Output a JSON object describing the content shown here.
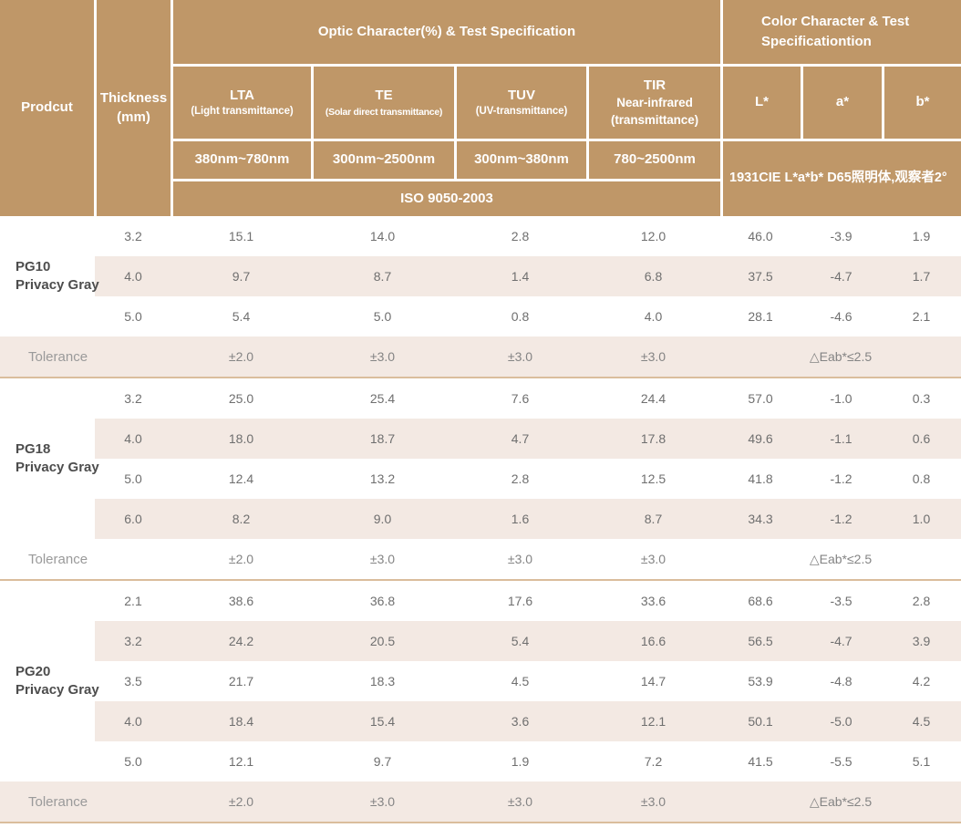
{
  "header": {
    "product_label": "Prodcut",
    "thickness_line1": "Thickness",
    "thickness_line2": "(mm)",
    "optic_group": "Optic Character(%) & Test Specification",
    "color_group_line1": "Color Character & Test",
    "color_group_line2": "Specificationtion",
    "optic_cols": [
      {
        "abbr": "LTA",
        "caption": [
          "(Light transmittance)"
        ],
        "range": "380nm~780nm"
      },
      {
        "abbr": "TE",
        "caption": [
          "(Solar direct transmittance)"
        ],
        "range": "300nm~2500nm"
      },
      {
        "abbr": "TUV",
        "caption": [
          "(UV-transmittance)"
        ],
        "range": "300nm~380nm"
      },
      {
        "abbr": "TIR",
        "caption": [
          "Near-infrared",
          "(transmittance)"
        ],
        "range": "780~2500nm"
      }
    ],
    "color_cols": [
      "L*",
      "a*",
      "b*"
    ],
    "iso_standard": "ISO 9050-2003",
    "cie_standard": "1931CIE L*a*b*  D65照明体,观察者2°"
  },
  "sections": [
    {
      "id": "pg10",
      "product_line1": "PG10",
      "product_line2": "Privacy Gray",
      "rows": [
        {
          "thickness": "3.2",
          "values": [
            "15.1",
            "14.0",
            "2.8",
            "12.0",
            "46.0",
            "-3.9",
            "1.9"
          ]
        },
        {
          "thickness": "4.0",
          "values": [
            "9.7",
            "8.7",
            "1.4",
            "6.8",
            "37.5",
            "-4.7",
            "1.7"
          ]
        },
        {
          "thickness": "5.0",
          "values": [
            "5.4",
            "5.0",
            "0.8",
            "4.0",
            "28.1",
            "-4.6",
            "2.1"
          ]
        }
      ],
      "tolerance": {
        "label": "Tolerance",
        "values": [
          "±2.0",
          "±3.0",
          "±3.0",
          "±3.0"
        ],
        "color_delta": "△Eab*≤2.5"
      }
    },
    {
      "id": "pg18",
      "product_line1": "PG18",
      "product_line2": "Privacy Gray",
      "rows": [
        {
          "thickness": "3.2",
          "values": [
            "25.0",
            "25.4",
            "7.6",
            "24.4",
            "57.0",
            "-1.0",
            "0.3"
          ]
        },
        {
          "thickness": "4.0",
          "values": [
            "18.0",
            "18.7",
            "4.7",
            "17.8",
            "49.6",
            "-1.1",
            "0.6"
          ]
        },
        {
          "thickness": "5.0",
          "values": [
            "12.4",
            "13.2",
            "2.8",
            "12.5",
            "41.8",
            "-1.2",
            "0.8"
          ]
        },
        {
          "thickness": "6.0",
          "values": [
            "8.2",
            "9.0",
            "1.6",
            "8.7",
            "34.3",
            "-1.2",
            "1.0"
          ]
        }
      ],
      "tolerance": {
        "label": "Tolerance",
        "values": [
          "±2.0",
          "±3.0",
          "±3.0",
          "±3.0"
        ],
        "color_delta": "△Eab*≤2.5"
      }
    },
    {
      "id": "pg20",
      "product_line1": "PG20",
      "product_line2": "Privacy Gray",
      "rows": [
        {
          "thickness": "2.1",
          "values": [
            "38.6",
            "36.8",
            "17.6",
            "33.6",
            "68.6",
            "-3.5",
            "2.8"
          ]
        },
        {
          "thickness": "3.2",
          "values": [
            "24.2",
            "20.5",
            "5.4",
            "16.6",
            "56.5",
            "-4.7",
            "3.9"
          ]
        },
        {
          "thickness": "3.5",
          "values": [
            "21.7",
            "18.3",
            "4.5",
            "14.7",
            "53.9",
            "-4.8",
            "4.2"
          ]
        },
        {
          "thickness": "4.0",
          "values": [
            "18.4",
            "15.4",
            "3.6",
            "12.1",
            "50.1",
            "-5.0",
            "4.5"
          ]
        },
        {
          "thickness": "5.0",
          "values": [
            "12.1",
            "9.7",
            "1.9",
            "7.2",
            "41.5",
            "-5.5",
            "5.1"
          ]
        }
      ],
      "tolerance": {
        "label": "Tolerance",
        "values": [
          "±2.0",
          "±3.0",
          "±3.0",
          "±3.0"
        ],
        "color_delta": "△Eab*≤2.5"
      }
    }
  ],
  "colors": {
    "header_bg": "#bf9768",
    "stripe_bg": "#f3e9e3",
    "separator": "#dabd9c",
    "header_text": "#ffffff",
    "body_text": "#6f6f6f",
    "product_text": "#4d4d4d",
    "tolerance_text": "#9a9a9a"
  }
}
